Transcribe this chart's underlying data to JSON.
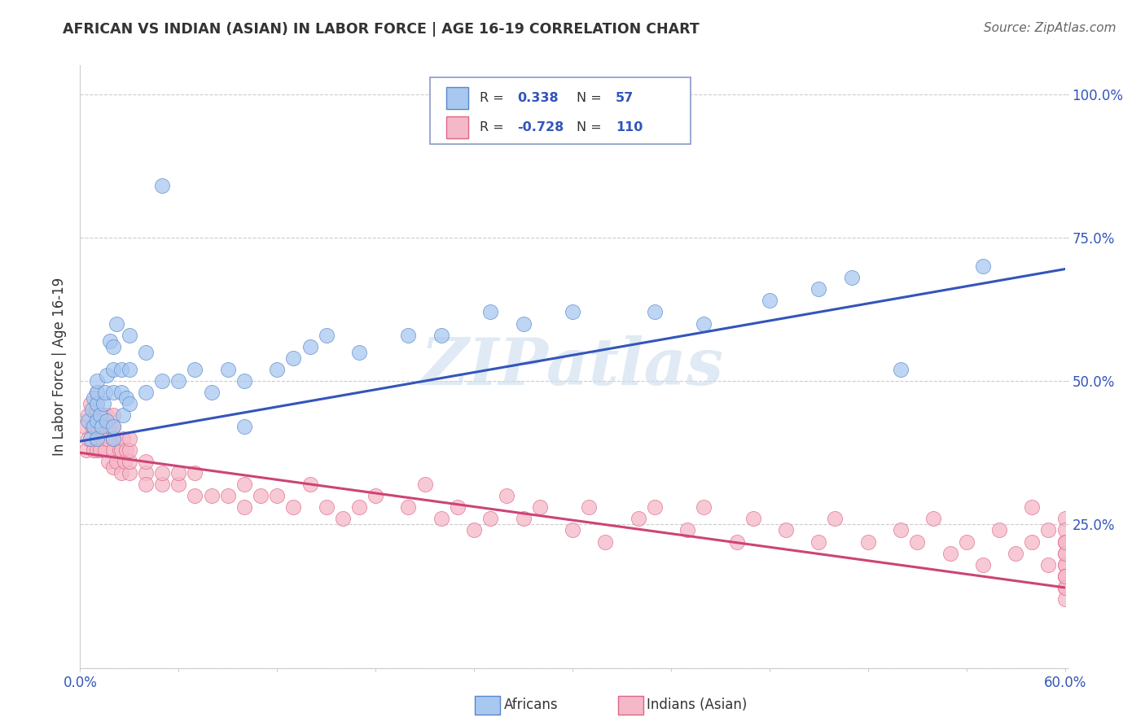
{
  "title": "AFRICAN VS INDIAN (ASIAN) IN LABOR FORCE | AGE 16-19 CORRELATION CHART",
  "source": "Source: ZipAtlas.com",
  "ylabel": "In Labor Force | Age 16-19",
  "xlim": [
    0.0,
    0.6
  ],
  "ylim": [
    0.0,
    1.05
  ],
  "xtick_positions": [
    0.0,
    0.06,
    0.12,
    0.18,
    0.24,
    0.3,
    0.36,
    0.42,
    0.48,
    0.54,
    0.6
  ],
  "xtick_labels": [
    "0.0%",
    "",
    "",
    "",
    "",
    "",
    "",
    "",
    "",
    "",
    "60.0%"
  ],
  "ytick_positions": [
    0.0,
    0.25,
    0.5,
    0.75,
    1.0
  ],
  "ytick_labels": [
    "",
    "25.0%",
    "50.0%",
    "75.0%",
    "100.0%"
  ],
  "africans_label": "Africans",
  "indians_label": "Indians (Asian)",
  "blue_fill": "#a8c8f0",
  "blue_edge": "#5588cc",
  "pink_fill": "#f5b8c8",
  "pink_edge": "#dd6688",
  "blue_line": "#3355bb",
  "pink_line": "#cc4477",
  "watermark": "ZIPatlas",
  "legend_r1": "0.338",
  "legend_n1": "57",
  "legend_r2": "-0.728",
  "legend_n2": "110",
  "blue_trend_x0": 0.0,
  "blue_trend_y0": 0.395,
  "blue_trend_x1": 0.6,
  "blue_trend_y1": 0.695,
  "pink_trend_x0": 0.0,
  "pink_trend_y0": 0.375,
  "pink_trend_x1": 0.6,
  "pink_trend_y1": 0.14,
  "blue_pts_x": [
    0.005,
    0.006,
    0.007,
    0.008,
    0.008,
    0.01,
    0.01,
    0.01,
    0.01,
    0.01,
    0.012,
    0.013,
    0.014,
    0.015,
    0.016,
    0.016,
    0.018,
    0.02,
    0.02,
    0.02,
    0.02,
    0.02,
    0.022,
    0.025,
    0.025,
    0.026,
    0.028,
    0.03,
    0.03,
    0.03,
    0.04,
    0.04,
    0.05,
    0.05,
    0.06,
    0.07,
    0.08,
    0.09,
    0.1,
    0.1,
    0.12,
    0.13,
    0.14,
    0.15,
    0.17,
    0.2,
    0.22,
    0.25,
    0.27,
    0.3,
    0.35,
    0.38,
    0.42,
    0.45,
    0.47,
    0.5,
    0.55
  ],
  "blue_pts_y": [
    0.43,
    0.4,
    0.45,
    0.42,
    0.47,
    0.4,
    0.43,
    0.46,
    0.48,
    0.5,
    0.44,
    0.42,
    0.46,
    0.48,
    0.43,
    0.51,
    0.57,
    0.4,
    0.42,
    0.48,
    0.52,
    0.56,
    0.6,
    0.48,
    0.52,
    0.44,
    0.47,
    0.46,
    0.52,
    0.58,
    0.48,
    0.55,
    0.5,
    0.84,
    0.5,
    0.52,
    0.48,
    0.52,
    0.5,
    0.42,
    0.52,
    0.54,
    0.56,
    0.58,
    0.55,
    0.58,
    0.58,
    0.62,
    0.6,
    0.62,
    0.62,
    0.6,
    0.64,
    0.66,
    0.68,
    0.52,
    0.7
  ],
  "pink_pts_x": [
    0.003,
    0.004,
    0.005,
    0.005,
    0.006,
    0.007,
    0.008,
    0.008,
    0.009,
    0.01,
    0.01,
    0.01,
    0.01,
    0.01,
    0.01,
    0.012,
    0.012,
    0.013,
    0.014,
    0.015,
    0.016,
    0.016,
    0.017,
    0.018,
    0.02,
    0.02,
    0.02,
    0.02,
    0.02,
    0.022,
    0.024,
    0.025,
    0.025,
    0.026,
    0.027,
    0.028,
    0.03,
    0.03,
    0.03,
    0.03,
    0.04,
    0.04,
    0.04,
    0.05,
    0.05,
    0.06,
    0.06,
    0.07,
    0.07,
    0.08,
    0.09,
    0.1,
    0.1,
    0.11,
    0.12,
    0.13,
    0.14,
    0.15,
    0.16,
    0.17,
    0.18,
    0.2,
    0.21,
    0.22,
    0.23,
    0.24,
    0.25,
    0.26,
    0.27,
    0.28,
    0.3,
    0.31,
    0.32,
    0.34,
    0.35,
    0.37,
    0.38,
    0.4,
    0.41,
    0.43,
    0.45,
    0.46,
    0.48,
    0.5,
    0.51,
    0.52,
    0.53,
    0.54,
    0.55,
    0.56,
    0.57,
    0.58,
    0.58,
    0.59,
    0.59,
    0.6,
    0.6,
    0.6,
    0.6,
    0.6,
    0.6,
    0.6,
    0.6,
    0.6,
    0.6,
    0.6,
    0.6,
    0.6,
    0.6,
    0.6
  ],
  "pink_pts_y": [
    0.42,
    0.38,
    0.4,
    0.44,
    0.46,
    0.42,
    0.38,
    0.42,
    0.44,
    0.38,
    0.4,
    0.42,
    0.44,
    0.46,
    0.48,
    0.38,
    0.42,
    0.4,
    0.44,
    0.38,
    0.4,
    0.44,
    0.36,
    0.42,
    0.35,
    0.38,
    0.4,
    0.42,
    0.44,
    0.36,
    0.38,
    0.34,
    0.38,
    0.4,
    0.36,
    0.38,
    0.34,
    0.36,
    0.38,
    0.4,
    0.34,
    0.36,
    0.32,
    0.32,
    0.34,
    0.32,
    0.34,
    0.3,
    0.34,
    0.3,
    0.3,
    0.28,
    0.32,
    0.3,
    0.3,
    0.28,
    0.32,
    0.28,
    0.26,
    0.28,
    0.3,
    0.28,
    0.32,
    0.26,
    0.28,
    0.24,
    0.26,
    0.3,
    0.26,
    0.28,
    0.24,
    0.28,
    0.22,
    0.26,
    0.28,
    0.24,
    0.28,
    0.22,
    0.26,
    0.24,
    0.22,
    0.26,
    0.22,
    0.24,
    0.22,
    0.26,
    0.2,
    0.22,
    0.18,
    0.24,
    0.2,
    0.22,
    0.28,
    0.18,
    0.24,
    0.16,
    0.18,
    0.22,
    0.26,
    0.2,
    0.22,
    0.14,
    0.18,
    0.24,
    0.16,
    0.2,
    0.22,
    0.12,
    0.14,
    0.16
  ]
}
